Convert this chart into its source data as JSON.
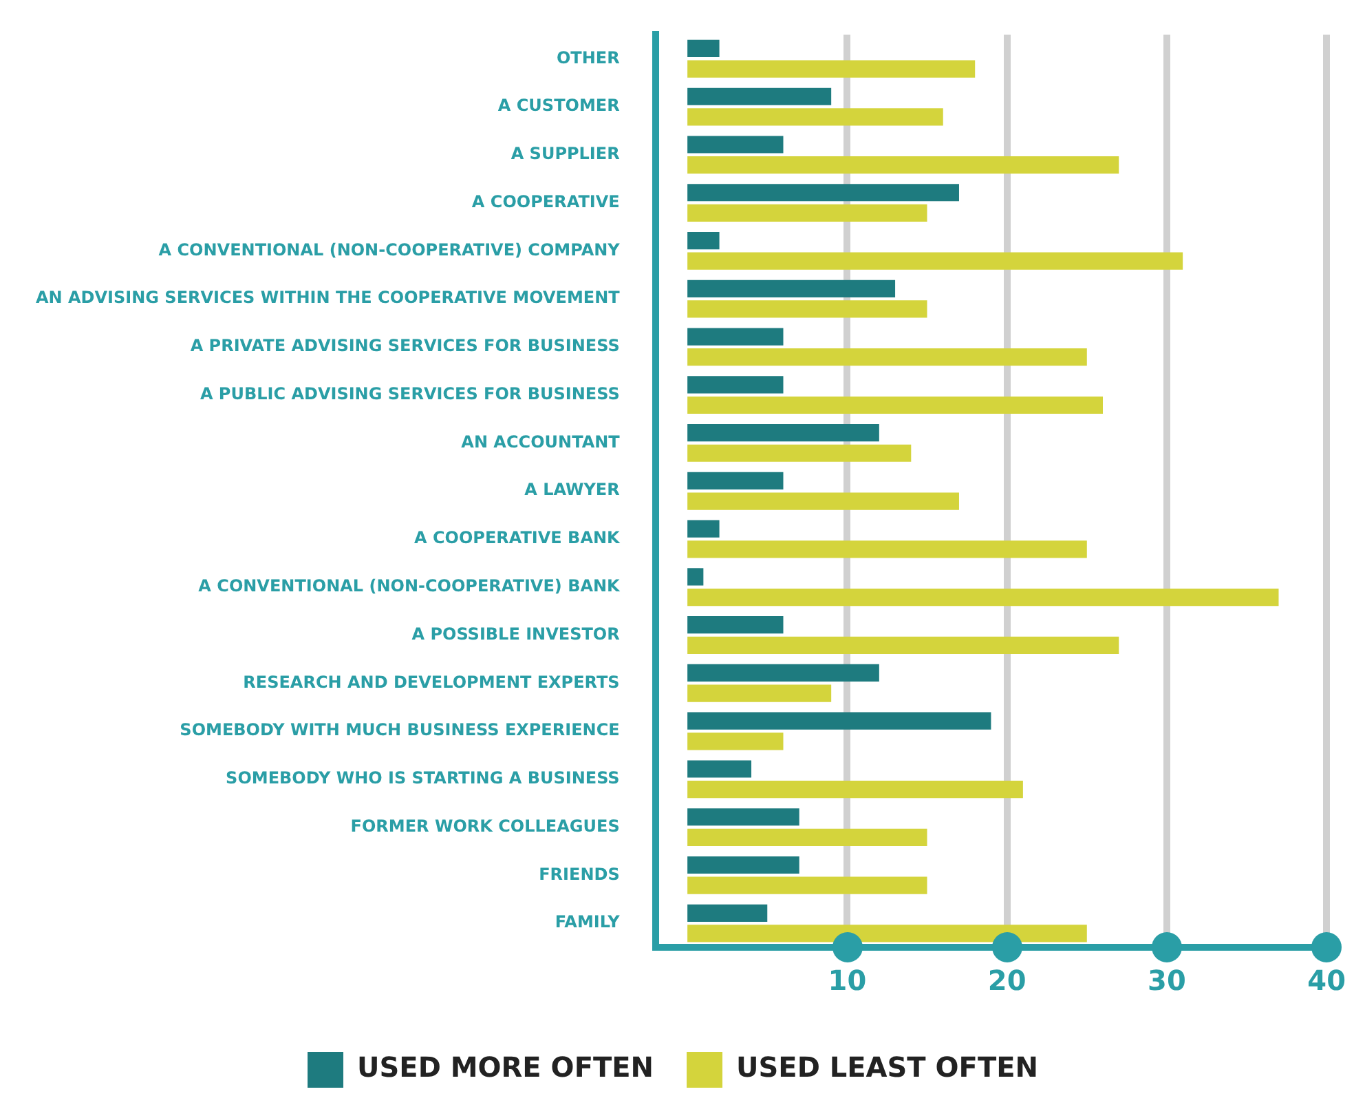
{
  "chart_data": {
    "type": "bar",
    "orientation": "horizontal",
    "categories": [
      "OTHER",
      "A CUSTOMER",
      "A SUPPLIER",
      "A COOPERATIVE",
      "A CONVENTIONAL (NON-COOPERATIVE) COMPANY",
      "AN ADVISING SERVICES WITHIN THE COOPERATIVE MOVEMENT",
      "A PRIVATE ADVISING SERVICES FOR BUSINESS",
      "A PUBLIC ADVISING SERVICES FOR BUSINESS",
      "AN ACCOUNTANT",
      "A LAWYER",
      "A COOPERATIVE BANK",
      "A CONVENTIONAL (NON-COOPERATIVE) BANK",
      "A POSSIBLE INVESTOR",
      "RESEARCH AND DEVELOPMENT EXPERTS",
      "SOMEBODY WITH MUCH BUSINESS EXPERIENCE",
      "SOMEBODY WHO IS STARTING A BUSINESS",
      "FORMER WORK COLLEAGUES",
      "FRIENDS",
      "FAMILY"
    ],
    "series": [
      {
        "name": "USED MORE OFTEN",
        "color": "#1e7b7f",
        "values": [
          2,
          9,
          6,
          17,
          2,
          13,
          6,
          6,
          12,
          6,
          2,
          1,
          6,
          12,
          19,
          4,
          7,
          7,
          5
        ]
      },
      {
        "name": "USED LEAST OFTEN",
        "color": "#d4d43c",
        "values": [
          18,
          16,
          27,
          15,
          31,
          15,
          25,
          26,
          14,
          17,
          25,
          37,
          27,
          9,
          6,
          21,
          15,
          15,
          25
        ]
      }
    ],
    "xlim": [
      -2,
      40
    ],
    "xticks": [
      10,
      20,
      30,
      40
    ],
    "grid": "x",
    "legend": "bottom"
  }
}
